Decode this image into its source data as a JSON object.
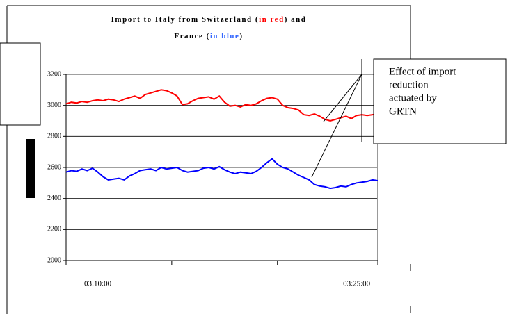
{
  "chart_data": {
    "type": "line",
    "title": {
      "lines": [
        [
          {
            "text": "Import to Italy from Switzerland (",
            "color": "#000000"
          },
          {
            "text": "in red",
            "color": "#ff0000"
          },
          {
            "text": ") and",
            "color": "#000000"
          }
        ],
        [
          {
            "text": "France (",
            "color": "#000000"
          },
          {
            "text": "in blue",
            "color": "#3366ff"
          },
          {
            "text": ")",
            "color": "#000000"
          }
        ]
      ]
    },
    "categories": [
      null,
      null,
      null,
      null,
      null,
      null,
      "03:10:00",
      null,
      null,
      null,
      null,
      null,
      null,
      null,
      null,
      null,
      null,
      null,
      null,
      null,
      null,
      null,
      null,
      null,
      null,
      null,
      null,
      null,
      null,
      null,
      null,
      null,
      null,
      null,
      null,
      null,
      null,
      null,
      null,
      null,
      null,
      null,
      null,
      null,
      null,
      null,
      null,
      null,
      null,
      null,
      null,
      null,
      null,
      null,
      null,
      "03:25:00",
      null,
      null,
      null,
      null
    ],
    "series": [
      {
        "name": "Switzerland",
        "color": "#ff0000",
        "values": [
          3010,
          3020,
          3015,
          3025,
          3020,
          3030,
          3035,
          3030,
          3040,
          3035,
          3025,
          3040,
          3050,
          3060,
          3045,
          3070,
          3080,
          3090,
          3100,
          3095,
          3080,
          3060,
          3005,
          3010,
          3030,
          3045,
          3050,
          3055,
          3040,
          3060,
          3020,
          2995,
          3000,
          2990,
          3005,
          3000,
          3010,
          3030,
          3045,
          3050,
          3040,
          3000,
          2985,
          2980,
          2970,
          2940,
          2935,
          2945,
          2930,
          2910,
          2900,
          2910,
          2920,
          2930,
          2915,
          2935,
          2940,
          2935,
          2940,
          2945
        ]
      },
      {
        "name": "France",
        "color": "#0000ff",
        "values": [
          2570,
          2580,
          2575,
          2590,
          2580,
          2595,
          2570,
          2540,
          2520,
          2525,
          2530,
          2520,
          2545,
          2560,
          2580,
          2585,
          2590,
          2580,
          2600,
          2590,
          2595,
          2600,
          2580,
          2570,
          2575,
          2580,
          2595,
          2600,
          2590,
          2605,
          2585,
          2570,
          2560,
          2570,
          2565,
          2560,
          2575,
          2600,
          2630,
          2655,
          2620,
          2600,
          2590,
          2570,
          2550,
          2535,
          2520,
          2490,
          2480,
          2475,
          2465,
          2470,
          2480,
          2475,
          2490,
          2500,
          2505,
          2510,
          2520,
          2515
        ]
      }
    ],
    "ylim": [
      2000,
      3200
    ],
    "yticks": [
      2000,
      2200,
      2400,
      2600,
      2800,
      3000,
      3200
    ],
    "grid": true,
    "annotation": [
      "Effect of import",
      "reduction",
      "actuated by",
      "GRTN"
    ]
  }
}
